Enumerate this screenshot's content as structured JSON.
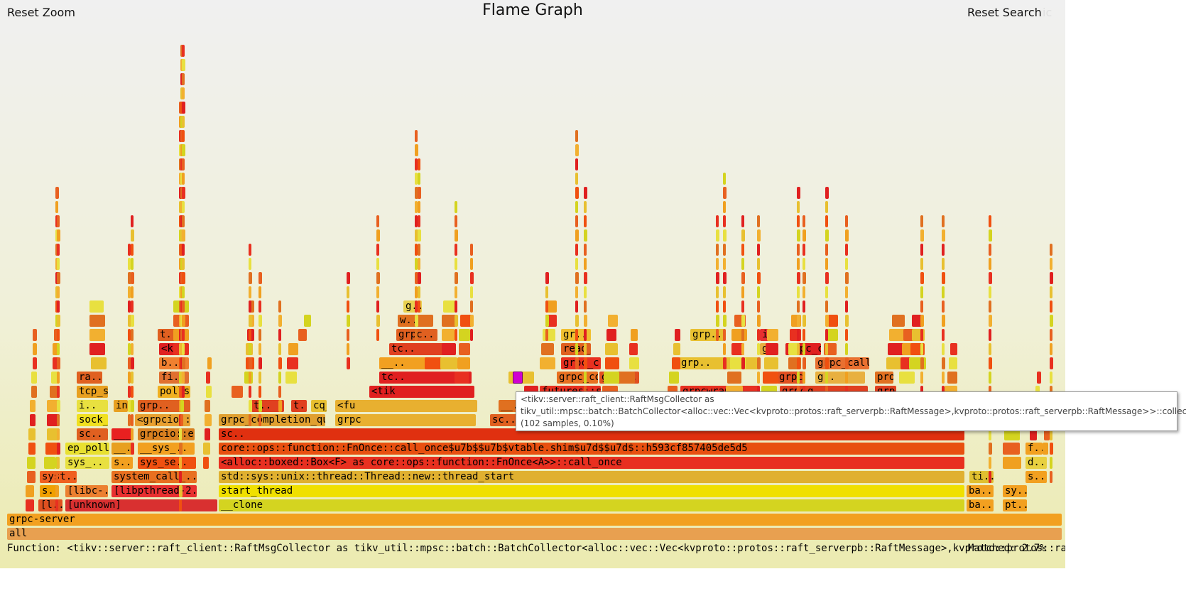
{
  "header": {
    "reset_zoom": "Reset Zoom",
    "title": "Flame Graph",
    "reset_search": "Reset Search",
    "faded_text": "ic"
  },
  "frames": [
    {
      "label": "all",
      "color": "#e8a050"
    },
    {
      "label": "grpc-server",
      "color": "#f2a020"
    },
    {
      "label": "[l..",
      "color": "#e05020"
    },
    {
      "label": "[unknown]",
      "color": "#d93030"
    },
    {
      "label": "__clone",
      "color": "#d4d420"
    },
    {
      "label": "ba..",
      "color": "#f2a020"
    },
    {
      "label": "pt..",
      "color": "#f2a020"
    },
    {
      "label": "s..",
      "color": "#f0a000"
    },
    {
      "label": "[libc-..",
      "color": "#ec8030"
    },
    {
      "label": "[libpthread-2...",
      "color": "#e83030"
    },
    {
      "label": "start_thread",
      "color": "#f0e000"
    },
    {
      "label": "ba..",
      "color": "#f2a020"
    },
    {
      "label": "sy..",
      "color": "#f2a020"
    },
    {
      "label": "syst..",
      "color": "#f06020"
    },
    {
      "label": "system_call_..",
      "color": "#e87020"
    },
    {
      "label": "std::sys::unix::thread::Thread::new::thread_start",
      "color": "#e0b030"
    },
    {
      "label": "ti..",
      "color": "#e0c030"
    },
    {
      "label": "s..",
      "color": "#f2a020"
    },
    {
      "label": "sys_..",
      "color": "#e8e040"
    },
    {
      "label": "s..",
      "color": "#f2a020"
    },
    {
      "label": "sys_se..",
      "color": "#f05010"
    },
    {
      "label": "<alloc::boxed::Box<F> as core::ops::function::FnOnce<A>>::call_once",
      "color": "#e83020"
    },
    {
      "label": "d..",
      "color": "#e8d040"
    },
    {
      "label": "ep_poll",
      "color": "#e8e030"
    },
    {
      "label": "__..",
      "color": "#e8a020"
    },
    {
      "label": "__sys_..",
      "color": "#f2a020"
    },
    {
      "label": "core::ops::function::FnOnce::call_once$u7b$$u7b$vtable.shim$u7d$$u7d$::h593cf857405de5d5",
      "color": "#e85010"
    },
    {
      "label": "f..",
      "color": "#f2a020"
    },
    {
      "label": "sc..",
      "color": "#e06020"
    },
    {
      "label": "___sys..",
      "color": "#e82020"
    },
    {
      "label": "grpcio::env::poll_queue",
      "color": "#d88020"
    },
    {
      "label": "sc..",
      "color": "#e03010"
    },
    {
      "label": "sock_s..",
      "color": "#f0e020"
    },
    {
      "label": "<grpcio::serve..",
      "color": "#e8a030"
    },
    {
      "label": "grpc_completion_queu..",
      "color": "#e0a030"
    },
    {
      "label": "grpc",
      "color": "#e8b030"
    },
    {
      "label": "sc..",
      "color": "#e06020"
    },
    {
      "label": "i..",
      "color": "#e8e040"
    },
    {
      "label": "inet_s..",
      "color": "#e8a020"
    },
    {
      "label": "grp..",
      "color": "#e06020"
    },
    {
      "label": "t..",
      "color": "#e04020"
    },
    {
      "label": "t..",
      "color": "#e04020"
    },
    {
      "label": "cq_next",
      "color": "#e8c030"
    },
    {
      "label": "<fu",
      "color": "#e8b030"
    },
    {
      "label": "__..",
      "color": "#e07020"
    },
    {
      "label": "tcp_s..",
      "color": "#e8a020"
    },
    {
      "label": "pollset_work",
      "color": "#f0b020"
    },
    {
      "label": "<tik",
      "color": "#e02020"
    },
    {
      "label": "futures::sink::s",
      "color": "#e83020"
    },
    {
      "label": "grpcwrap_c..",
      "color": "#e83020"
    },
    {
      "label": "grpcio::call",
      "color": "#e04020"
    },
    {
      "label": "g..",
      "color": "#e04020"
    },
    {
      "label": "grpcio::c..",
      "color": "#e04020"
    },
    {
      "label": "ra..",
      "color": "#e06020"
    },
    {
      "label": "fi..",
      "color": "#e07030"
    },
    {
      "label": "tc..",
      "color": "#e02020"
    },
    {
      "label": "grpc_core::Ex..",
      "color": "#e87020"
    },
    {
      "label": "grpci..",
      "color": "#e05020"
    },
    {
      "label": "grpc..",
      "color": "#e05020"
    },
    {
      "label": "g..",
      "color": "#e8b040"
    },
    {
      "label": "protobu..",
      "color": "#e07020"
    },
    {
      "label": "b..",
      "color": "#f08030"
    },
    {
      "label": "__..",
      "color": "#f2a020"
    },
    {
      "label": "grpc_c..",
      "color": "#e83020"
    },
    {
      "label": "grp..",
      "color": "#e8c030"
    },
    {
      "label": "grpc_call_..",
      "color": "#e87030"
    },
    {
      "label": "<kvpro..",
      "color": "#e02020"
    },
    {
      "label": "tc..",
      "color": "#e04020"
    },
    {
      "label": "read_ac..",
      "color": "#e06020"
    },
    {
      "label": "gr..",
      "color": "#e8b040"
    },
    {
      "label": "grpc_co..",
      "color": "#e02020"
    },
    {
      "label": "t..",
      "color": "#e06020"
    },
    {
      "label": "grpc..",
      "color": "#e06020"
    },
    {
      "label": "gr..",
      "color": "#f0c030"
    },
    {
      "label": "grp..",
      "color": "#e8c030"
    },
    {
      "label": "in..",
      "color": "#e83030"
    },
    {
      "label": "w..",
      "color": "#e07020"
    },
    {
      "label": "g..",
      "color": "#e8d050"
    }
  ],
  "tooltip": {
    "text": "<tikv::server::raft_client::RaftMsgCollector as tikv_util::mpsc::batch::BatchCollector<alloc::vec::Vec<kvproto::protos::raft_serverpb::RaftMessage>,kvproto::protos::raft_serverpb::RaftMessage>>::collect (102 samples, 0.10%)"
  },
  "footer": {
    "details": "Function: <tikv::server::raft_client::RaftMsgCollector as tikv_util::mpsc::batch::BatchCollector<alloc::vec::Vec<kvproto::protos::raft_serverpb::RaftMessage>,kvproto::protos::raft_serverpb::Ra",
    "matched": "Matched: 2.7%"
  }
}
